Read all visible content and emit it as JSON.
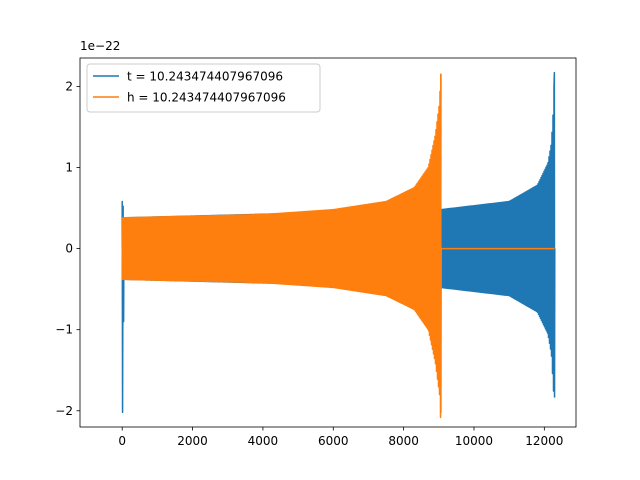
{
  "chart_data": {
    "type": "line",
    "offset_label": "1e−22",
    "xlim": [
      -1200,
      12900
    ],
    "ylim": [
      -2.2,
      2.35
    ],
    "x_ticks": [
      0,
      2000,
      4000,
      6000,
      8000,
      10000,
      12000
    ],
    "x_tick_labels": [
      "0",
      "2000",
      "4000",
      "6000",
      "8000",
      "10000",
      "12000"
    ],
    "y_ticks": [
      -2,
      -1,
      0,
      1,
      2
    ],
    "y_tick_labels": [
      "−2",
      "−1",
      "0",
      "1",
      "2"
    ],
    "grid": false,
    "legend_position": "upper-left",
    "series": [
      {
        "name": "t = 10.243474407967096",
        "color": "#1f77b4",
        "x_range": [
          0,
          12290
        ],
        "spike_start": {
          "max": 0.58,
          "min": -2.02
        },
        "envelope": [
          [
            60,
            0.38
          ],
          [
            9050,
            0.48
          ],
          [
            11000,
            0.58
          ],
          [
            11800,
            0.78
          ],
          [
            12100,
            1.05
          ],
          [
            12200,
            1.3
          ],
          [
            12260,
            1.75
          ],
          [
            12285,
            2.17
          ]
        ],
        "spike_end": {
          "max": 2.17,
          "min": -1.83
        },
        "tail_value": 0
      },
      {
        "name": "h = 10.243474407967096",
        "color": "#ff7f0e",
        "x_range": [
          0,
          12290
        ],
        "envelope": [
          [
            0,
            0.38
          ],
          [
            2000,
            0.4
          ],
          [
            4000,
            0.42
          ],
          [
            6000,
            0.48
          ],
          [
            7500,
            0.58
          ],
          [
            8300,
            0.75
          ],
          [
            8700,
            1.0
          ],
          [
            8900,
            1.4
          ],
          [
            9020,
            1.8
          ],
          [
            9055,
            2.15
          ]
        ],
        "spike_end": {
          "max": 2.15,
          "min": -2.02
        },
        "chirp_end_x": 9060,
        "tail_value": 0
      }
    ]
  }
}
